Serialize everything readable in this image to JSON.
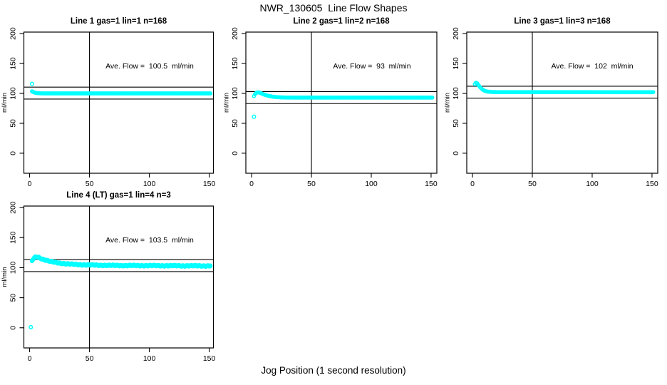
{
  "figure": {
    "title": "NWR_130605  Line Flow Shapes",
    "xlabel": "Jog Position (1 second resolution)"
  },
  "colors": {
    "data_marker": "#00FFFF",
    "axis": "#000000",
    "background": "#FFFFFF"
  },
  "chart_data": [
    {
      "type": "scatter",
      "title": "Line 1 gas=1 lin=1 n=168",
      "n": 168,
      "ave_flow_ml_min": 100.5,
      "ave_flow_label": "Ave. Flow =  100.5  ml/min",
      "ylabel": "ml/min",
      "xticks": [
        0,
        50,
        100,
        150
      ],
      "yticks": [
        0,
        50,
        100,
        150,
        200
      ],
      "xlim": [
        -4.8,
        153.5
      ],
      "ylim": [
        -33.5,
        202.5
      ],
      "grid": false,
      "ref_hlines": [
        110.5,
        90.5
      ],
      "ref_vline": 50,
      "x_range": [
        2,
        151
      ],
      "samples": 168,
      "passes": 1,
      "noise": 0,
      "series_knots": [
        [
          2,
          103.5
        ],
        [
          3,
          102.3
        ],
        [
          4,
          101.4
        ],
        [
          6,
          100.6
        ],
        [
          9,
          100.1
        ],
        [
          13,
          100
        ],
        [
          151,
          100
        ]
      ],
      "outliers": [
        [
          2,
          116
        ]
      ]
    },
    {
      "type": "scatter",
      "title": "Line 2 gas=1 lin=2 n=168",
      "n": 168,
      "ave_flow_ml_min": 93,
      "ave_flow_label": "Ave. Flow =  93  ml/min",
      "ylabel": "ml/min",
      "xticks": [
        0,
        50,
        100,
        150
      ],
      "yticks": [
        0,
        50,
        100,
        150,
        200
      ],
      "xlim": [
        -4.8,
        154.8
      ],
      "ylim": [
        -33.5,
        202.5
      ],
      "grid": false,
      "ref_hlines": [
        103,
        83
      ],
      "ref_vline": 50,
      "x_range": [
        2,
        151
      ],
      "samples": 168,
      "passes": 1,
      "noise": 0,
      "series_knots": [
        [
          2,
          95.5
        ],
        [
          3,
          99
        ],
        [
          4,
          101
        ],
        [
          5,
          101.8
        ],
        [
          6.5,
          101.5
        ],
        [
          8,
          100.2
        ],
        [
          10,
          98.4
        ],
        [
          12,
          97
        ],
        [
          15,
          95.5
        ],
        [
          18,
          94.4
        ],
        [
          22,
          93.6
        ],
        [
          28,
          93.1
        ],
        [
          40,
          93
        ],
        [
          151,
          93
        ]
      ],
      "outliers": [
        [
          2,
          61
        ]
      ]
    },
    {
      "type": "scatter",
      "title": "Line 3 gas=1 lin=3 n=168",
      "n": 168,
      "ave_flow_ml_min": 102,
      "ave_flow_label": "Ave. Flow =  102  ml/min",
      "ylabel": "ml/min",
      "xticks": [
        0,
        50,
        100,
        150
      ],
      "yticks": [
        0,
        50,
        100,
        150,
        200
      ],
      "xlim": [
        -4.8,
        154.8
      ],
      "ylim": [
        -33.5,
        202.5
      ],
      "grid": false,
      "ref_hlines": [
        112,
        92
      ],
      "ref_vline": 50,
      "x_range": [
        2,
        151
      ],
      "samples": 168,
      "passes": 1,
      "noise": 0,
      "series_knots": [
        [
          2,
          115.5
        ],
        [
          3,
          118
        ],
        [
          4,
          116.8
        ],
        [
          5,
          113.8
        ],
        [
          6.5,
          110
        ],
        [
          8,
          107
        ],
        [
          10,
          104.5
        ],
        [
          12,
          103.2
        ],
        [
          15,
          102.5
        ],
        [
          20,
          102.1
        ],
        [
          151,
          102
        ]
      ],
      "outliers": []
    },
    {
      "type": "scatter",
      "title": "Line 4 (LT) gas=1 lin=4 n=3",
      "n": 3,
      "ave_flow_ml_min": 103.5,
      "ave_flow_label": "Ave. Flow =  103.5  ml/min",
      "ylabel": "ml/min",
      "xticks": [
        0,
        50,
        100,
        150
      ],
      "yticks": [
        0,
        50,
        100,
        150,
        200
      ],
      "xlim": [
        -4.8,
        153.5
      ],
      "ylim": [
        -33.5,
        202.5
      ],
      "grid": false,
      "ref_hlines": [
        113.5,
        93.5
      ],
      "ref_vline": 50,
      "x_range": [
        2,
        151
      ],
      "samples": 160,
      "passes": 3,
      "noise": 0.8,
      "series_knots": [
        [
          2,
          111.5
        ],
        [
          3,
          114
        ],
        [
          4,
          116.5
        ],
        [
          5,
          117.7
        ],
        [
          6,
          118
        ],
        [
          7.5,
          117.2
        ],
        [
          9,
          115.8
        ],
        [
          11,
          114.2
        ],
        [
          13,
          112.8
        ],
        [
          16,
          111
        ],
        [
          19,
          109.6
        ],
        [
          23,
          108.2
        ],
        [
          27,
          107.2
        ],
        [
          32,
          106.2
        ],
        [
          38,
          105.4
        ],
        [
          45,
          104.8
        ],
        [
          52,
          104.3
        ],
        [
          60,
          104
        ],
        [
          70,
          103.7
        ],
        [
          85,
          103.5
        ],
        [
          100,
          103.4
        ],
        [
          120,
          103.2
        ],
        [
          151,
          103
        ]
      ],
      "outliers": [
        [
          1,
          1
        ]
      ]
    }
  ]
}
